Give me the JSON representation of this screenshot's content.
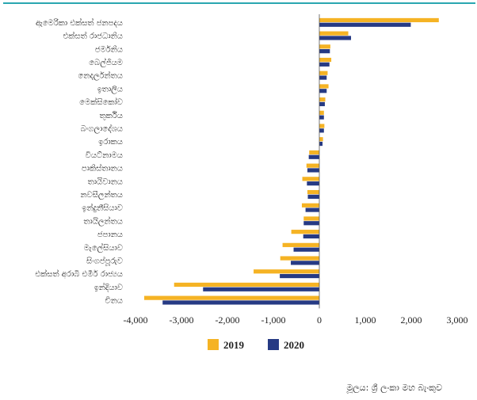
{
  "chart_data": {
    "type": "bar",
    "orientation": "horizontal",
    "categories": [
      "ඇමෙරිකා එක්සත් ජනපදය",
      "එක්සත් රාජධානිය",
      "ජර්මනිය",
      "බෙල්ජියම",
      "නෙදර්ලන්තය",
      "ඉතාලිය",
      "මෙක්සිකෝව",
      "තුර්කිය",
      "බංගලාදේශය",
      "ඉරාකය",
      "වියට්නාමය",
      "පාකිස්තානය",
      "තායිවානය",
      "නවසීලන්තය",
      "ඉන්දුනීසියාව",
      "තායිලන්තය",
      "ජපානය",
      "මැලේසියාව",
      "සිංගප්පූරුව",
      "එක්සත් අරාබි එමීර් රාජ්‍යය",
      "ඉන්දියාව",
      "චීනය"
    ],
    "series": [
      {
        "name": "2019",
        "color": "#f5b324",
        "values": [
          2600,
          630,
          240,
          260,
          180,
          200,
          130,
          100,
          110,
          80,
          -220,
          -280,
          -370,
          -260,
          -380,
          -340,
          -610,
          -800,
          -850,
          -1430,
          -3160,
          -3810
        ]
      },
      {
        "name": "2020",
        "color": "#263a84",
        "values": [
          1990,
          690,
          230,
          220,
          160,
          160,
          120,
          100,
          100,
          70,
          -230,
          -260,
          -270,
          -250,
          -300,
          -340,
          -350,
          -560,
          -620,
          -860,
          -2530,
          -3410
        ]
      }
    ],
    "xlim": [
      -4000,
      3000
    ],
    "xticks": [
      -4000,
      -3000,
      -2000,
      -1000,
      0,
      1000,
      2000,
      3000
    ],
    "xtick_labels": [
      "-4,000",
      "-3,000",
      "-2,000",
      "-1,000",
      "0",
      "1,000",
      "2,000",
      "3,000"
    ],
    "grid": false,
    "legend_position": "bottom-center"
  },
  "source_text": "මූලය: ශ්‍රී ලංකා මහ බැංකුව"
}
